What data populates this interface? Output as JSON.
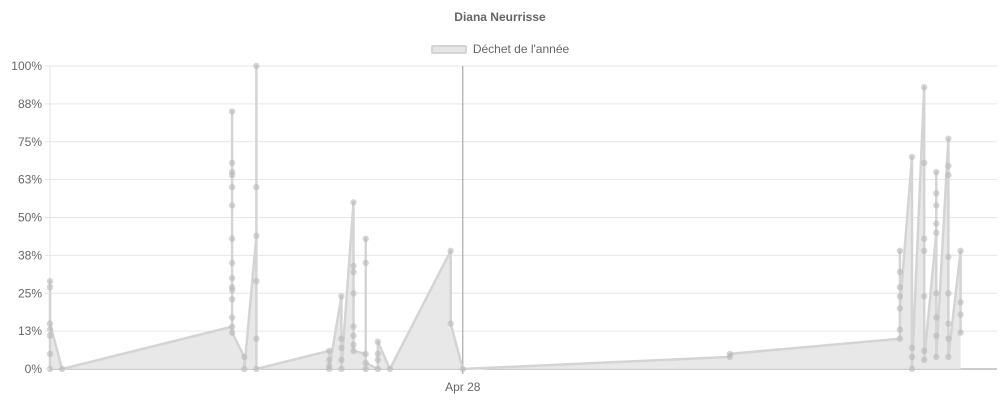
{
  "chart_data": {
    "type": "area",
    "title": "Diana Neurrisse",
    "xlabel": "",
    "ylabel": "",
    "legend": {
      "position": "top-center"
    },
    "grid": true,
    "ylim": [
      0,
      1
    ],
    "xlim": [
      "2019-03-25",
      "2019-06-11"
    ],
    "y_ticks": [
      {
        "value": 0,
        "label": "0%"
      },
      {
        "value": 0.125,
        "label": "13%"
      },
      {
        "value": 0.25,
        "label": "25%"
      },
      {
        "value": 0.375,
        "label": "38%"
      },
      {
        "value": 0.5,
        "label": "50%"
      },
      {
        "value": 0.625,
        "label": "63%"
      },
      {
        "value": 0.75,
        "label": "75%"
      },
      {
        "value": 0.875,
        "label": "88%"
      },
      {
        "value": 1,
        "label": "100%"
      }
    ],
    "x_ticks": [
      {
        "value": "2019-04-28",
        "label": "Apr 28"
      }
    ],
    "colors": {
      "fill": "#e6e6e6",
      "line": "#d4d4d4",
      "point": "#b4b4b4",
      "grid": "#e6e6e6",
      "axis": "#999999"
    },
    "series": [
      {
        "name": "Déchet de l'année",
        "points": [
          [
            "2019-03-25",
            0.0
          ],
          [
            "2019-03-25",
            0.05
          ],
          [
            "2019-03-25",
            0.11
          ],
          [
            "2019-03-25",
            0.13
          ],
          [
            "2019-03-25",
            0.27
          ],
          [
            "2019-03-25",
            0.29
          ],
          [
            "2019-03-25",
            0.15
          ],
          [
            "2019-03-26",
            0.0
          ],
          [
            "2019-04-09",
            0.14
          ],
          [
            "2019-04-09",
            0.85
          ],
          [
            "2019-04-09",
            0.64
          ],
          [
            "2019-04-09",
            0.6
          ],
          [
            "2019-04-09",
            0.43
          ],
          [
            "2019-04-09",
            0.35
          ],
          [
            "2019-04-09",
            0.27
          ],
          [
            "2019-04-09",
            0.26
          ],
          [
            "2019-04-09",
            0.68
          ],
          [
            "2019-04-09",
            0.65
          ],
          [
            "2019-04-09",
            0.3
          ],
          [
            "2019-04-09",
            0.17
          ],
          [
            "2019-04-09",
            0.54
          ],
          [
            "2019-04-09",
            0.23
          ],
          [
            "2019-04-09",
            0.12
          ],
          [
            "2019-04-10",
            0.04
          ],
          [
            "2019-04-10",
            0.0
          ],
          [
            "2019-04-11",
            0.44
          ],
          [
            "2019-04-11",
            1.0
          ],
          [
            "2019-04-11",
            0.6
          ],
          [
            "2019-04-11",
            0.29
          ],
          [
            "2019-04-11",
            0.1
          ],
          [
            "2019-04-11",
            0.0
          ],
          [
            "2019-04-17",
            0.06
          ],
          [
            "2019-04-17",
            0.03
          ],
          [
            "2019-04-17",
            0.01
          ],
          [
            "2019-04-17",
            0.0
          ],
          [
            "2019-04-18",
            0.24
          ],
          [
            "2019-04-18",
            0.1
          ],
          [
            "2019-04-18",
            0.07
          ],
          [
            "2019-04-18",
            0.03
          ],
          [
            "2019-04-18",
            0.0
          ],
          [
            "2019-04-19",
            0.55
          ],
          [
            "2019-04-19",
            0.34
          ],
          [
            "2019-04-19",
            0.32
          ],
          [
            "2019-04-19",
            0.25
          ],
          [
            "2019-04-19",
            0.14
          ],
          [
            "2019-04-19",
            0.11
          ],
          [
            "2019-04-19",
            0.08
          ],
          [
            "2019-04-19",
            0.06
          ],
          [
            "2019-04-20",
            0.05
          ],
          [
            "2019-04-20",
            0.0
          ],
          [
            "2019-04-20",
            0.43
          ],
          [
            "2019-04-20",
            0.35
          ],
          [
            "2019-04-20",
            0.02
          ],
          [
            "2019-04-21",
            0.0
          ],
          [
            "2019-04-21",
            0.03
          ],
          [
            "2019-04-21",
            0.05
          ],
          [
            "2019-04-21",
            0.09
          ],
          [
            "2019-04-22",
            0.0
          ],
          [
            "2019-04-27",
            0.39
          ],
          [
            "2019-04-27",
            0.15
          ],
          [
            "2019-04-28",
            0.0
          ],
          [
            "2019-05-20",
            0.04
          ],
          [
            "2019-05-20",
            0.05
          ],
          [
            "2019-06-03",
            0.1
          ],
          [
            "2019-06-03",
            0.27
          ],
          [
            "2019-06-03",
            0.32
          ],
          [
            "2019-06-03",
            0.39
          ],
          [
            "2019-06-03",
            0.24
          ],
          [
            "2019-06-03",
            0.13
          ],
          [
            "2019-06-03",
            0.2
          ],
          [
            "2019-06-04",
            0.7
          ],
          [
            "2019-06-04",
            0.04
          ],
          [
            "2019-06-04",
            0.07
          ],
          [
            "2019-06-04",
            0.0
          ],
          [
            "2019-06-05",
            0.93
          ],
          [
            "2019-06-05",
            0.68
          ],
          [
            "2019-06-05",
            0.43
          ],
          [
            "2019-06-05",
            0.39
          ],
          [
            "2019-06-05",
            0.24
          ],
          [
            "2019-06-05",
            0.06
          ],
          [
            "2019-06-05",
            0.03
          ],
          [
            "2019-06-06",
            0.45
          ],
          [
            "2019-06-06",
            0.58
          ],
          [
            "2019-06-06",
            0.65
          ],
          [
            "2019-06-06",
            0.54
          ],
          [
            "2019-06-06",
            0.48
          ],
          [
            "2019-06-06",
            0.25
          ],
          [
            "2019-06-06",
            0.17
          ],
          [
            "2019-06-06",
            0.11
          ],
          [
            "2019-06-06",
            0.04
          ],
          [
            "2019-06-07",
            0.76
          ],
          [
            "2019-06-07",
            0.67
          ],
          [
            "2019-06-07",
            0.64
          ],
          [
            "2019-06-07",
            0.37
          ],
          [
            "2019-06-07",
            0.25
          ],
          [
            "2019-06-07",
            0.15
          ],
          [
            "2019-06-07",
            0.1
          ],
          [
            "2019-06-07",
            0.04
          ],
          [
            "2019-06-08",
            0.39
          ],
          [
            "2019-06-08",
            0.22
          ],
          [
            "2019-06-08",
            0.18
          ],
          [
            "2019-06-08",
            0.12
          ]
        ]
      }
    ]
  }
}
